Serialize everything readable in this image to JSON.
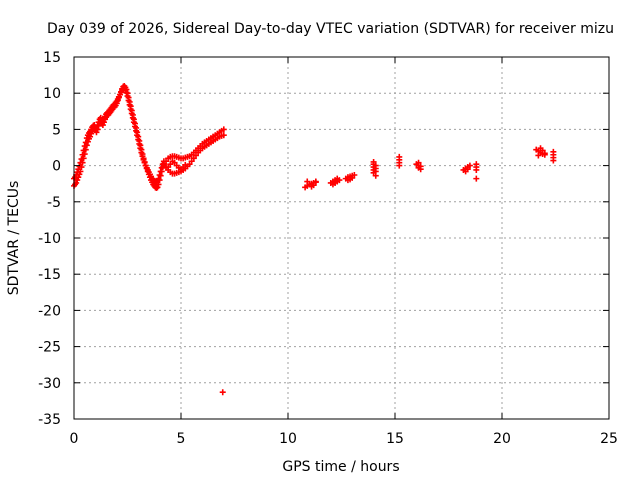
{
  "chart_data": {
    "type": "scatter",
    "title": "Day 039 of 2026, Sidereal Day-to-day VTEC variation (SDTVAR) for receiver mizu",
    "xlabel": "GPS time / hours",
    "ylabel": "SDTVAR / TECUs",
    "xlim": [
      0,
      25
    ],
    "ylim": [
      -35,
      15
    ],
    "xticks": [
      0,
      5,
      10,
      15,
      20,
      25
    ],
    "yticks": [
      -35,
      -30,
      -25,
      -20,
      -15,
      -10,
      -5,
      0,
      5,
      10,
      15
    ],
    "grid": true,
    "marker": "+",
    "series": [
      {
        "name": "SDTVAR",
        "color": "#ff0000",
        "segments": [
          {
            "x": [
              0.0,
              0.05,
              0.1,
              0.15,
              0.2,
              0.25,
              0.3,
              0.35,
              0.4,
              0.45,
              0.5,
              0.55,
              0.6,
              0.65,
              0.7,
              0.75,
              0.8,
              0.85,
              0.9,
              0.95,
              1.0,
              1.05,
              1.1,
              1.15,
              1.2,
              1.25,
              1.3,
              1.35,
              1.4,
              1.45,
              1.5,
              1.55,
              1.6,
              1.65,
              1.7,
              1.75,
              1.8,
              1.85,
              1.9,
              1.95,
              2.0,
              2.05,
              2.1,
              2.15,
              2.2,
              2.25,
              2.3,
              2.35,
              2.4,
              2.45,
              2.5,
              2.55,
              2.6,
              2.65,
              2.7,
              2.75,
              2.8,
              2.85,
              2.9,
              2.95,
              3.0,
              3.05,
              3.1,
              3.15,
              3.2,
              3.25,
              3.3,
              3.35,
              3.4,
              3.45,
              3.5,
              3.55,
              3.6,
              3.65,
              3.7,
              3.75,
              3.8,
              3.85,
              3.9,
              3.95,
              4.0,
              4.05,
              4.1,
              4.15,
              4.2
            ],
            "y": [
              -2.8,
              -2.6,
              -2.4,
              -2.0,
              -1.6,
              -1.2,
              -0.8,
              -0.2,
              0.4,
              1.0,
              1.6,
              2.2,
              2.8,
              3.3,
              3.7,
              4.0,
              4.4,
              4.8,
              5.0,
              5.2,
              4.9,
              4.6,
              5.0,
              5.5,
              6.0,
              6.2,
              5.8,
              5.6,
              6.0,
              6.4,
              6.7,
              6.9,
              7.0,
              7.2,
              7.4,
              7.6,
              7.8,
              8.0,
              8.1,
              8.3,
              8.6,
              9.0,
              9.4,
              9.8,
              10.2,
              10.6,
              10.9,
              11.0,
              10.8,
              10.5,
              10.0,
              9.4,
              8.8,
              8.2,
              7.6,
              7.0,
              6.4,
              5.8,
              5.2,
              4.6,
              4.0,
              3.4,
              2.8,
              2.2,
              1.6,
              1.0,
              0.5,
              0.0,
              -0.4,
              -0.8,
              -1.2,
              -1.6,
              -2.0,
              -2.3,
              -2.6,
              -2.8,
              -3.0,
              -3.1,
              -3.0,
              -2.6,
              -2.0,
              -1.4,
              -0.8,
              -0.2,
              0.3
            ]
          },
          {
            "x": [
              0.0,
              0.05,
              0.1,
              0.15,
              0.2,
              0.25,
              0.3,
              0.35,
              0.4,
              0.45,
              0.5,
              0.55,
              0.6,
              0.65,
              0.7,
              0.75,
              0.8,
              0.85,
              0.9,
              0.95,
              1.0,
              1.05,
              1.1,
              1.15,
              1.2,
              1.25,
              1.3,
              1.35,
              1.4,
              1.45,
              1.5,
              1.55,
              1.6,
              1.65,
              1.7,
              1.75,
              1.8,
              1.85,
              1.9,
              1.95,
              2.0,
              2.05,
              2.1,
              2.15,
              2.2,
              2.25,
              2.3,
              2.35,
              2.4,
              2.45,
              2.5,
              2.55,
              2.6,
              2.65,
              2.7,
              2.75,
              2.8,
              2.85,
              2.9,
              2.95,
              3.0,
              3.05,
              3.1,
              3.15,
              3.2,
              3.25,
              3.3,
              3.35,
              3.4,
              3.45,
              3.5,
              3.55,
              3.6,
              3.65,
              3.7,
              3.75,
              3.8,
              3.85,
              3.9,
              3.95,
              4.0,
              4.05,
              4.1,
              4.15,
              4.2
            ],
            "y": [
              -1.8,
              -1.6,
              -1.3,
              -0.9,
              -0.5,
              -0.1,
              0.4,
              0.9,
              1.5,
              2.1,
              2.7,
              3.2,
              3.8,
              4.2,
              4.5,
              4.7,
              5.0,
              5.3,
              5.5,
              5.6,
              5.3,
              5.0,
              5.5,
              6.0,
              6.4,
              6.6,
              6.2,
              6.0,
              6.4,
              6.8,
              7.1,
              7.3,
              7.4,
              7.6,
              7.8,
              8.0,
              8.2,
              8.4,
              8.5,
              8.7,
              8.9,
              9.2,
              9.5,
              9.8,
              10.1,
              10.4,
              10.6,
              10.7,
              10.5,
              10.1,
              9.6,
              9.0,
              8.4,
              7.8,
              7.2,
              6.6,
              6.0,
              5.4,
              4.8,
              4.2,
              3.6,
              3.0,
              2.4,
              1.8,
              1.3,
              0.8,
              0.4,
              0.0,
              -0.3,
              -0.6,
              -0.9,
              -1.2,
              -1.5,
              -1.8,
              -2.0,
              -2.1,
              -2.2,
              -2.2,
              -2.1,
              -1.8,
              -1.3,
              -0.8,
              -0.3,
              0.2,
              0.6
            ]
          },
          {
            "x": [
              4.2,
              4.3,
              4.4,
              4.5,
              4.6,
              4.7,
              4.8,
              4.9,
              5.0,
              5.1,
              5.2,
              5.3,
              5.4,
              5.5,
              5.6,
              5.7,
              5.8,
              5.9,
              6.0,
              6.1,
              6.2,
              6.3,
              6.4,
              6.5,
              6.6,
              6.7,
              6.8,
              6.9,
              7.0
            ],
            "y": [
              0.2,
              0.6,
              1.0,
              1.2,
              1.3,
              1.3,
              1.2,
              1.1,
              1.0,
              1.0,
              1.1,
              1.2,
              1.3,
              1.5,
              1.8,
              2.1,
              2.4,
              2.7,
              3.0,
              3.2,
              3.4,
              3.6,
              3.8,
              4.0,
              4.2,
              4.4,
              4.6,
              4.8,
              5.0
            ]
          },
          {
            "x": [
              4.2,
              4.3,
              4.4,
              4.5,
              4.6,
              4.7,
              4.8,
              4.9,
              5.0,
              5.1,
              5.2,
              5.3,
              5.4,
              5.5,
              5.6,
              5.7,
              5.8,
              5.9,
              6.0,
              6.1,
              6.2,
              6.3,
              6.4,
              6.5,
              6.6,
              6.7,
              6.8,
              6.9,
              7.0
            ],
            "y": [
              0.0,
              -0.3,
              -0.6,
              -0.9,
              -1.1,
              -1.1,
              -1.0,
              -0.9,
              -0.8,
              -0.6,
              -0.4,
              -0.1,
              0.2,
              0.6,
              1.0,
              1.4,
              1.8,
              2.1,
              2.4,
              2.6,
              2.8,
              3.0,
              3.2,
              3.4,
              3.6,
              3.8,
              4.0,
              4.1,
              4.2
            ]
          },
          {
            "x": [
              4.4,
              4.5,
              4.6,
              4.7,
              4.8,
              4.9,
              5.0,
              5.1,
              5.2
            ],
            "y": [
              -0.2,
              0.2,
              0.6,
              0.4,
              0.0,
              -0.3,
              -0.5,
              -0.2,
              0.1
            ]
          },
          {
            "x": [
              10.8,
              10.9,
              11.0,
              11.1,
              11.2,
              11.3,
              10.9,
              11.0,
              11.1,
              11.2,
              11.3
            ],
            "y": [
              -3.0,
              -2.8,
              -2.6,
              -2.5,
              -2.4,
              -2.3,
              -2.2,
              -2.6,
              -2.9,
              -2.7,
              -2.2
            ]
          },
          {
            "x": [
              12.0,
              12.1,
              12.2,
              12.3,
              12.1,
              12.2,
              12.3,
              12.4
            ],
            "y": [
              -2.4,
              -2.2,
              -2.0,
              -1.8,
              -2.6,
              -2.4,
              -2.2,
              -2.0
            ]
          },
          {
            "x": [
              12.7,
              12.8,
              12.9,
              13.0,
              13.1,
              12.8,
              12.9,
              13.0
            ],
            "y": [
              -1.8,
              -1.6,
              -1.5,
              -1.4,
              -1.3,
              -2.0,
              -1.9,
              -1.7
            ]
          },
          {
            "x": [
              14.0,
              14.0,
              14.0,
              14.0,
              14.1,
              14.1,
              14.1,
              14.1,
              14.0
            ],
            "y": [
              0.2,
              -0.2,
              -0.6,
              -1.0,
              0.0,
              -0.4,
              -0.8,
              -1.4,
              0.5
            ]
          },
          {
            "x": [
              15.2,
              15.2,
              15.2,
              15.2
            ],
            "y": [
              1.2,
              0.8,
              0.4,
              0.0
            ]
          },
          {
            "x": [
              16.0,
              16.1,
              16.1,
              16.2,
              16.2,
              16.1
            ],
            "y": [
              0.2,
              0.0,
              -0.3,
              -0.1,
              -0.5,
              0.4
            ]
          },
          {
            "x": [
              18.2,
              18.3,
              18.4,
              18.5,
              18.3,
              18.4
            ],
            "y": [
              -0.6,
              -0.4,
              -0.2,
              0.0,
              -0.8,
              -0.5
            ]
          },
          {
            "x": [
              18.8,
              18.8,
              18.8,
              18.8
            ],
            "y": [
              0.2,
              -0.2,
              -0.6,
              -1.8
            ]
          },
          {
            "x": [
              21.6,
              21.7,
              21.8,
              21.9,
              22.0,
              21.7,
              21.8,
              21.9,
              22.0
            ],
            "y": [
              2.2,
              2.0,
              1.8,
              1.6,
              1.5,
              1.4,
              2.4,
              2.1,
              1.7
            ]
          },
          {
            "x": [
              22.4,
              22.4,
              22.4,
              22.4
            ],
            "y": [
              1.9,
              1.5,
              1.1,
              0.7
            ]
          },
          {
            "x": [
              6.95
            ],
            "y": [
              -31.3
            ]
          }
        ]
      }
    ]
  }
}
